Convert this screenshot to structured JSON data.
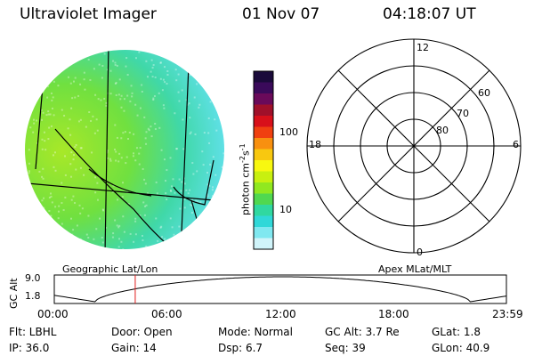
{
  "header": {
    "instrument": "Ultraviolet Imager",
    "date": "01 Nov 07",
    "time": "04:18:07 UT"
  },
  "colorbar": {
    "unit_label": "photon cm",
    "unit_exp1": "-2",
    "unit_mid": "s",
    "unit_exp2": "-1",
    "ticks": [
      "100",
      "10"
    ],
    "colors": [
      "#1a0a3a",
      "#3a0a5a",
      "#6a0a5a",
      "#a0102a",
      "#d8101a",
      "#f04010",
      "#f89010",
      "#f8c810",
      "#f8f810",
      "#c8f010",
      "#90e820",
      "#50d850",
      "#30d8a0",
      "#30d8d8",
      "#80e8f0",
      "#d0f4fa"
    ]
  },
  "polar": {
    "labels": {
      "top": "12",
      "bottom": "0",
      "left": "18",
      "right": "6"
    },
    "lat_labels": [
      "60",
      "70",
      "80"
    ]
  },
  "timeline": {
    "ylabel": "GC Alt",
    "ymax": "9.0",
    "ymin": "1.8",
    "left_title": "Geographic Lat/Lon",
    "right_title": "Apex MLat/MLT",
    "ticks": [
      "00:00",
      "06:00",
      "12:00",
      "18:00",
      "23:59"
    ],
    "current_time_fraction": 0.179
  },
  "status": {
    "flt": "Flt: LBHL",
    "ip": "IP: 36.0",
    "door": "Door: Open",
    "gain": "Gain: 14",
    "mode": "Mode: Normal",
    "dsp": "Dsp:      6.7",
    "gcalt": "GC Alt: 3.7 Re",
    "seq": "Seq: 39",
    "glat": "GLat:     1.8",
    "glon": "GLon:   40.9"
  }
}
